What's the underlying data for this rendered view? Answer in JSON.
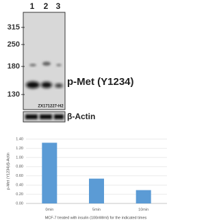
{
  "blot": {
    "lanes": [
      "1",
      "2",
      "3"
    ],
    "markers": [
      "315",
      "250",
      "180",
      "130"
    ],
    "target": "p-Met (Y1234)",
    "antibody_id": "ZX171227-H2",
    "loading_control": "β-Actin"
  },
  "chart_data": {
    "type": "bar",
    "ylabel": "p-Met (Y1234)/β-Actin",
    "xlabel": "MCF-7 treated with insulin (100nM/ml) for the indicated times",
    "categories": [
      "0min",
      "5min",
      "10min"
    ],
    "values": [
      1.32,
      0.54,
      0.29
    ],
    "color": "#5b9bd5",
    "ylim": [
      0,
      1.4
    ],
    "yticks": [
      {
        "value": 0,
        "label": "0.00"
      },
      {
        "value": 0.2,
        "label": "0.20"
      },
      {
        "value": 0.4,
        "label": "0.40"
      },
      {
        "value": 0.6,
        "label": "0.60"
      },
      {
        "value": 0.8,
        "label": "0.80"
      },
      {
        "value": 1.0,
        "label": "1.00"
      },
      {
        "value": 1.2,
        "label": "1.20"
      },
      {
        "value": 1.4,
        "label": "1.40"
      }
    ],
    "grid": true
  }
}
